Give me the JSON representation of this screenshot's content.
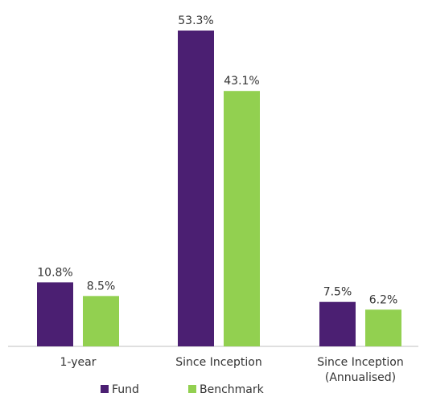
{
  "chart_data": {
    "type": "bar",
    "categories": [
      [
        "1-year"
      ],
      [
        "Since Inception"
      ],
      [
        "Since Inception",
        "(Annualised)"
      ]
    ],
    "series": [
      {
        "name": "Fund",
        "color": "#4B1F72",
        "values": [
          10.8,
          53.3,
          7.5
        ],
        "labels": [
          "10.8%",
          "53.3%",
          "7.5%"
        ]
      },
      {
        "name": "Benchmark",
        "color": "#92D050",
        "values": [
          8.5,
          43.1,
          6.2
        ],
        "labels": [
          "8.5%",
          "43.1%",
          "6.2%"
        ]
      }
    ],
    "ylim": [
      0,
      53.3
    ],
    "grid": false,
    "legend_position": "bottom"
  }
}
